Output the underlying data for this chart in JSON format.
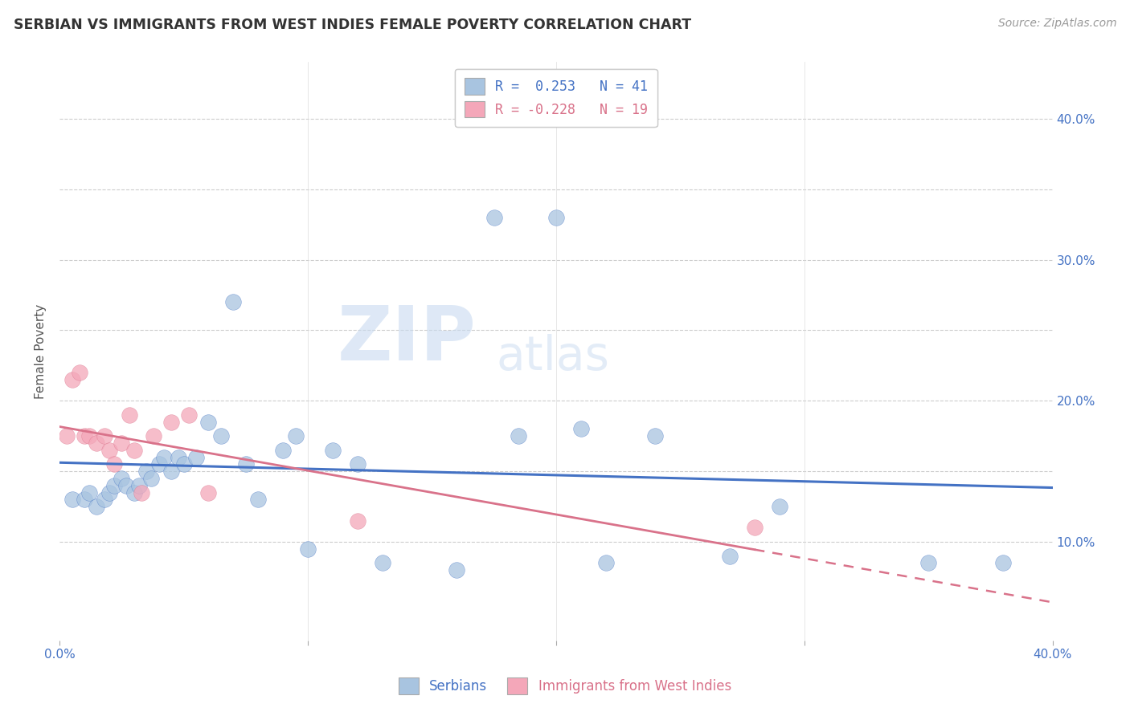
{
  "title": "SERBIAN VS IMMIGRANTS FROM WEST INDIES FEMALE POVERTY CORRELATION CHART",
  "source": "Source: ZipAtlas.com",
  "ylabel": "Female Poverty",
  "y_ticks": [
    0.1,
    0.15,
    0.2,
    0.25,
    0.3,
    0.35,
    0.4
  ],
  "y_tick_labels": [
    "10.0%",
    "",
    "20.0%",
    "",
    "30.0%",
    "",
    "40.0%"
  ],
  "xlim": [
    0.0,
    0.4
  ],
  "ylim": [
    0.03,
    0.44
  ],
  "legend_serbian": "Serbians",
  "legend_immigrants": "Immigrants from West Indies",
  "R_serbian": 0.253,
  "N_serbian": 41,
  "R_immigrants": -0.228,
  "N_immigrants": 19,
  "color_serbian": "#a8c4e0",
  "color_immigrants": "#f4a7b9",
  "line_color_serbian": "#4472c4",
  "line_color_immigrants": "#d9728a",
  "serbian_x": [
    0.005,
    0.01,
    0.012,
    0.015,
    0.018,
    0.02,
    0.022,
    0.025,
    0.027,
    0.03,
    0.032,
    0.035,
    0.037,
    0.04,
    0.042,
    0.045,
    0.048,
    0.05,
    0.055,
    0.06,
    0.065,
    0.07,
    0.075,
    0.08,
    0.09,
    0.095,
    0.1,
    0.11,
    0.12,
    0.13,
    0.16,
    0.175,
    0.185,
    0.2,
    0.21,
    0.22,
    0.24,
    0.27,
    0.29,
    0.35,
    0.38
  ],
  "serbian_y": [
    0.13,
    0.13,
    0.135,
    0.125,
    0.13,
    0.135,
    0.14,
    0.145,
    0.14,
    0.135,
    0.14,
    0.15,
    0.145,
    0.155,
    0.16,
    0.15,
    0.16,
    0.155,
    0.16,
    0.185,
    0.175,
    0.27,
    0.155,
    0.13,
    0.165,
    0.175,
    0.095,
    0.165,
    0.155,
    0.085,
    0.08,
    0.33,
    0.175,
    0.33,
    0.18,
    0.085,
    0.175,
    0.09,
    0.125,
    0.085,
    0.085
  ],
  "immigrants_x": [
    0.003,
    0.005,
    0.008,
    0.01,
    0.012,
    0.015,
    0.018,
    0.02,
    0.022,
    0.025,
    0.028,
    0.03,
    0.033,
    0.038,
    0.045,
    0.052,
    0.06,
    0.12,
    0.28
  ],
  "immigrants_y": [
    0.175,
    0.215,
    0.22,
    0.175,
    0.175,
    0.17,
    0.175,
    0.165,
    0.155,
    0.17,
    0.19,
    0.165,
    0.135,
    0.175,
    0.185,
    0.19,
    0.135,
    0.115,
    0.11
  ],
  "watermark_zip": "ZIP",
  "watermark_atlas": "atlas",
  "background_color": "#ffffff",
  "grid_color": "#cccccc"
}
